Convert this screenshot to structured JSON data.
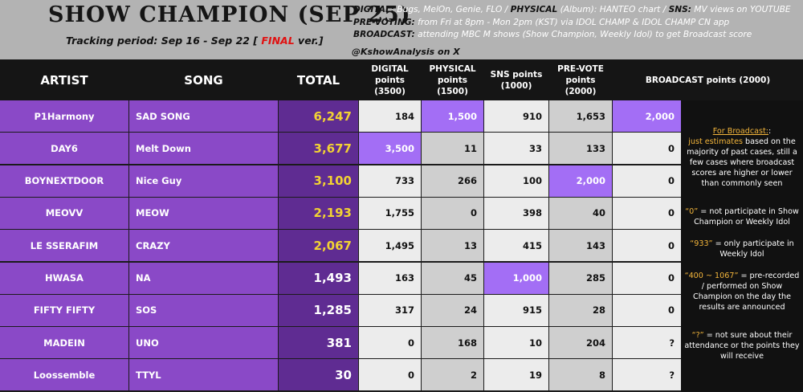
{
  "header": {
    "title": "SHOW CHAMPION (SEP 25)",
    "tracking_prefix": "Tracking period: Sep 16 - Sep 22 [ ",
    "tracking_final": "FINAL",
    "tracking_suffix": " ver.]",
    "notes": [
      {
        "label": "DIGITAL:",
        "text": " Bugs, MelOn, Genie, FLO / "
      },
      {
        "label": "PHYSICAL",
        "text": " (Album): "
      },
      {
        "label": "HANTEO chart / ",
        "text": ""
      },
      {
        "label": "SNS:",
        "text": " MV views on YOUTUBE"
      }
    ],
    "prevote_label": "PRE-VOTING:",
    "prevote_text": " from Fri at 8pm - Mon 2pm (KST) via IDOL CHAMP & IDOL CHAMP CN app",
    "broadcast_label": "BROADCAST:",
    "broadcast_text": " attending MBC M shows (Show Champion, Weekly Idol) to get Broadcast score",
    "credit": "@KshowAnalysis on X"
  },
  "columns": {
    "artist": "ARTIST",
    "song": "SONG",
    "total": "TOTAL",
    "digital": "DIGITAL points (3500)",
    "physical": "PHYSICAL points (1500)",
    "sns": "SNS points (1000)",
    "prevote": "PRE-VOTE points (2000)",
    "broadcast": "BROADCAST points (2000)"
  },
  "rows": [
    {
      "artist": "P1Harmony",
      "song": "SAD SONG",
      "total": "6,247",
      "digital": "184",
      "physical": "1,500",
      "sns": "910",
      "prevote": "1,653",
      "broadcast": "2,000"
    },
    {
      "artist": "DAY6",
      "song": "Melt Down",
      "total": "3,677",
      "digital": "3,500",
      "physical": "11",
      "sns": "33",
      "prevote": "133",
      "broadcast": "0"
    },
    {
      "artist": "BOYNEXTDOOR",
      "song": "Nice Guy",
      "total": "3,100",
      "digital": "733",
      "physical": "266",
      "sns": "100",
      "prevote": "2,000",
      "broadcast": "0"
    },
    {
      "artist": "MEOVV",
      "song": "MEOW",
      "total": "2,193",
      "digital": "1,755",
      "physical": "0",
      "sns": "398",
      "prevote": "40",
      "broadcast": "0"
    },
    {
      "artist": "LE SSERAFIM",
      "song": "CRAZY",
      "total": "2,067",
      "digital": "1,495",
      "physical": "13",
      "sns": "415",
      "prevote": "143",
      "broadcast": "0"
    },
    {
      "artist": "HWASA",
      "song": "NA",
      "total": "1,493",
      "digital": "163",
      "physical": "45",
      "sns": "1,000",
      "prevote": "285",
      "broadcast": "0"
    },
    {
      "artist": "FIFTY FIFTY",
      "song": "SOS",
      "total": "1,285",
      "digital": "317",
      "physical": "24",
      "sns": "915",
      "prevote": "28",
      "broadcast": "0"
    },
    {
      "artist": "MADEIN",
      "song": "UNO",
      "total": "381",
      "digital": "0",
      "physical": "168",
      "sns": "10",
      "prevote": "204",
      "broadcast": "?"
    },
    {
      "artist": "Loossemble",
      "song": "TTYL",
      "total": "30",
      "digital": "0",
      "physical": "2",
      "sns": "19",
      "prevote": "8",
      "broadcast": "?"
    }
  ],
  "side_notes": {
    "for_broadcast": "For Broadcast:",
    "just_estimates": "just estimates",
    "estimates_rest": " based on the majority of past cases, still a few cases where broadcast scores are higher or lower than commonly seen",
    "zero_label": "“0”",
    "zero_text": " = not participate in Show Champion or Weekly Idol",
    "n933_label": "“933”",
    "n933_text": " = only participate in Weekly Idol",
    "range_label": "“400 ~ 1067”",
    "range_text": " = pre-recorded / performed on Show Champion on the day the results are announced",
    "q_label": "“?”",
    "q_text": " = not sure about their attendance or the points they will receive"
  },
  "colors": {
    "artist_bg": "#8a49c7",
    "total_bg": "#5f2c92",
    "highlight_bg": "#a36ef5",
    "total_gold": "#f2d233",
    "accent": "#f3b53b",
    "final_red": "#e01010"
  }
}
